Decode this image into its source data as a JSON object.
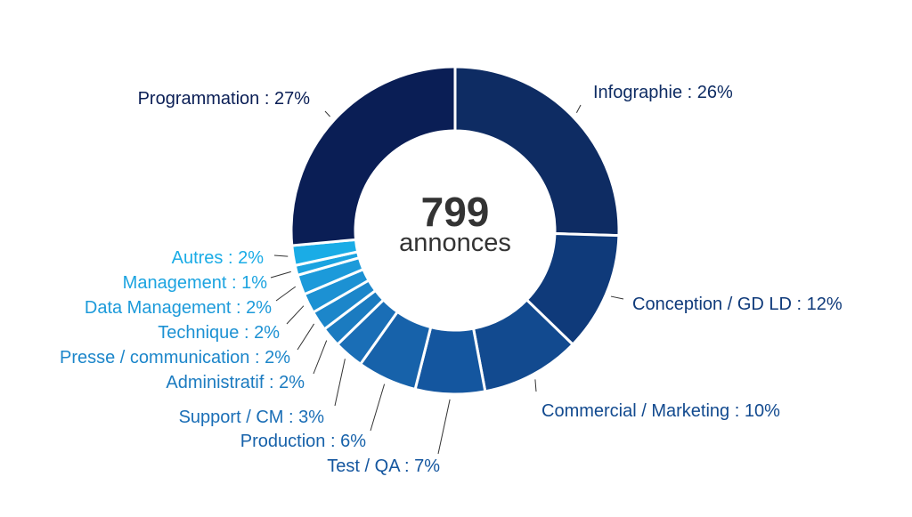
{
  "chart_data": {
    "type": "pie",
    "center": {
      "value": "799",
      "label": "annonces"
    },
    "slices": [
      {
        "name": "Infographie",
        "value": 26,
        "label": "Infographie : 26%",
        "color": "#0e2c63",
        "text_color": "#0e2c63"
      },
      {
        "name": "Conception / GD LD",
        "value": 12,
        "label": "Conception / GD LD : 12%",
        "color": "#0f3a7a",
        "text_color": "#0f3a7a"
      },
      {
        "name": "Commercial / Marketing",
        "value": 10,
        "label": "Commercial / Marketing : 10%",
        "color": "#124a8f",
        "text_color": "#124a8f"
      },
      {
        "name": "Test / QA",
        "value": 7,
        "label": "Test / QA : 7%",
        "color": "#14569f",
        "text_color": "#14569f"
      },
      {
        "name": "Production",
        "value": 6,
        "label": "Production : 6%",
        "color": "#1762aa",
        "text_color": "#1762aa"
      },
      {
        "name": "Support / CM",
        "value": 3,
        "label": "Support / CM : 3%",
        "color": "#1a6eb6",
        "text_color": "#1a6eb6"
      },
      {
        "name": "Administratif",
        "value": 2,
        "label": "Administratif : 2%",
        "color": "#1b7bc0",
        "text_color": "#1b7bc0"
      },
      {
        "name": "Presse / communication",
        "value": 2,
        "label": "Presse / communication : 2%",
        "color": "#1c86ca",
        "text_color": "#1c86ca"
      },
      {
        "name": "Technique",
        "value": 2,
        "label": "Technique : 2%",
        "color": "#1c91d3",
        "text_color": "#1c91d3"
      },
      {
        "name": "Data Management",
        "value": 2,
        "label": "Data Management : 2%",
        "color": "#1c9ada",
        "text_color": "#1c9ada"
      },
      {
        "name": "Management",
        "value": 1,
        "label": "Management : 1%",
        "color": "#1ba3e0",
        "text_color": "#1ba3e0"
      },
      {
        "name": "Autres",
        "value": 2,
        "label": "Autres : 2%",
        "color": "#1aace6",
        "text_color": "#1aace6"
      },
      {
        "name": "Programmation",
        "value": 27,
        "label": "Programmation : 27%",
        "color": "#0a1e55",
        "text_color": "#0a1e55"
      }
    ]
  }
}
